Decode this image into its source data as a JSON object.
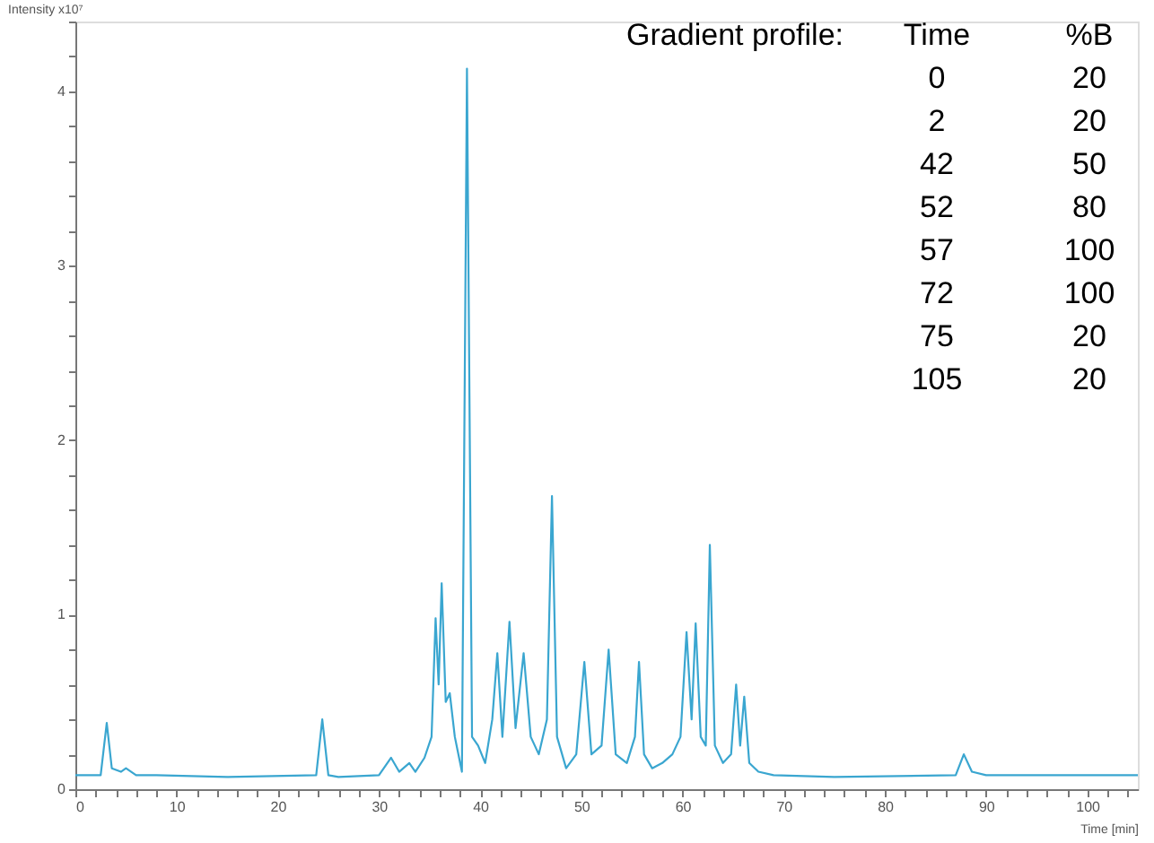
{
  "chart_data": {
    "type": "line",
    "xlabel": "Time [min]",
    "ylabel": "Intensity x10⁷",
    "x": [
      0,
      2.5,
      3.1,
      3.6,
      4.5,
      5,
      6,
      8,
      15,
      23.8,
      24.4,
      25,
      26,
      30,
      31.2,
      32,
      33,
      33.6,
      34.5,
      35.2,
      35.6,
      35.9,
      36.2,
      36.6,
      37,
      37.5,
      38.2,
      38.7,
      39.2,
      39.8,
      40.5,
      41.2,
      41.7,
      42.2,
      42.9,
      43.5,
      44.3,
      45,
      45.8,
      46.6,
      47.1,
      47.6,
      48.5,
      49.5,
      50.3,
      51,
      52,
      52.7,
      53.4,
      54.5,
      55.3,
      55.7,
      56.2,
      57,
      58,
      59,
      59.8,
      60.4,
      60.9,
      61.3,
      61.8,
      62.3,
      62.7,
      63.2,
      64,
      64.8,
      65.3,
      65.7,
      66.1,
      66.6,
      67.5,
      69,
      75,
      87,
      87.8,
      88.6,
      90,
      100,
      105
    ],
    "series": [
      {
        "color": "#3aa6d0",
        "values": [
          0.08,
          0.08,
          0.38,
          0.12,
          0.1,
          0.12,
          0.08,
          0.08,
          0.07,
          0.08,
          0.4,
          0.08,
          0.07,
          0.08,
          0.18,
          0.1,
          0.15,
          0.1,
          0.18,
          0.3,
          0.98,
          0.6,
          1.18,
          0.5,
          0.55,
          0.3,
          0.1,
          4.13,
          0.3,
          0.25,
          0.15,
          0.4,
          0.78,
          0.3,
          0.96,
          0.35,
          0.78,
          0.3,
          0.2,
          0.4,
          1.68,
          0.3,
          0.12,
          0.2,
          0.73,
          0.2,
          0.25,
          0.8,
          0.2,
          0.15,
          0.3,
          0.73,
          0.2,
          0.12,
          0.15,
          0.2,
          0.3,
          0.9,
          0.4,
          0.95,
          0.3,
          0.25,
          1.4,
          0.25,
          0.15,
          0.2,
          0.6,
          0.25,
          0.53,
          0.15,
          0.1,
          0.08,
          0.07,
          0.08,
          0.2,
          0.1,
          0.08,
          0.08,
          0.08
        ]
      }
    ],
    "xlim": [
      0,
      105
    ],
    "xticks": [
      0,
      {
        "value": 2,
        "label": null
      },
      {
        "value": 4,
        "label": null
      },
      {
        "value": 6,
        "label": null
      },
      {
        "value": 8,
        "label": null
      },
      10,
      {
        "value": 12,
        "label": null
      },
      {
        "value": 14,
        "label": null
      },
      {
        "value": 16,
        "label": null
      },
      {
        "value": 18,
        "label": null
      },
      20,
      {
        "value": 22,
        "label": null
      },
      {
        "value": 24,
        "label": null
      },
      {
        "value": 26,
        "label": null
      },
      {
        "value": 28,
        "label": null
      },
      30,
      {
        "value": 32,
        "label": null
      },
      {
        "value": 34,
        "label": null
      },
      {
        "value": 36,
        "label": null
      },
      {
        "value": 38,
        "label": null
      },
      40,
      {
        "value": 42,
        "label": null
      },
      {
        "value": 44,
        "label": null
      },
      {
        "value": 46,
        "label": null
      },
      {
        "value": 48,
        "label": null
      },
      50,
      {
        "value": 52,
        "label": null
      },
      {
        "value": 54,
        "label": null
      },
      {
        "value": 56,
        "label": null
      },
      {
        "value": 58,
        "label": null
      },
      60,
      {
        "value": 62,
        "label": null
      },
      {
        "value": 64,
        "label": null
      },
      {
        "value": 66,
        "label": null
      },
      {
        "value": 68,
        "label": null
      },
      70,
      {
        "value": 72,
        "label": null
      },
      {
        "value": 74,
        "label": null
      },
      {
        "value": 76,
        "label": null
      },
      {
        "value": 78,
        "label": null
      },
      80,
      {
        "value": 82,
        "label": null
      },
      {
        "value": 84,
        "label": null
      },
      {
        "value": 86,
        "label": null
      },
      {
        "value": 88,
        "label": null
      },
      90,
      {
        "value": 92,
        "label": null
      },
      {
        "value": 94,
        "label": null
      },
      {
        "value": 96,
        "label": null
      },
      {
        "value": 98,
        "label": null
      },
      100,
      {
        "value": 102,
        "label": null
      },
      {
        "value": 104,
        "label": null
      }
    ],
    "ylim": [
      0,
      4.4
    ],
    "yticks": [
      0,
      {
        "value": 0.2,
        "label": null
      },
      {
        "value": 0.4,
        "label": null
      },
      {
        "value": 0.6,
        "label": null
      },
      {
        "value": 0.8,
        "label": null
      },
      1,
      {
        "value": 1.2,
        "label": null
      },
      {
        "value": 1.4,
        "label": null
      },
      {
        "value": 1.6,
        "label": null
      },
      {
        "value": 1.8,
        "label": null
      },
      2,
      {
        "value": 2.2,
        "label": null
      },
      {
        "value": 2.4,
        "label": null
      },
      {
        "value": 2.6,
        "label": null
      },
      {
        "value": 2.8,
        "label": null
      },
      3,
      {
        "value": 3.2,
        "label": null
      },
      {
        "value": 3.4,
        "label": null
      },
      {
        "value": 3.6,
        "label": null
      },
      {
        "value": 3.8,
        "label": null
      },
      4,
      {
        "value": 4.2,
        "label": null
      },
      {
        "value": 4.4,
        "label": null
      }
    ],
    "grid": false,
    "marker": "none",
    "line_style": "solid",
    "annotations": [
      "Gradient profile:",
      "Time",
      "%B",
      "0",
      "20",
      "2",
      "20",
      "42",
      "50",
      "52",
      "80",
      "57",
      "100",
      "72",
      "100",
      "75",
      "20",
      "105",
      "20"
    ]
  }
}
